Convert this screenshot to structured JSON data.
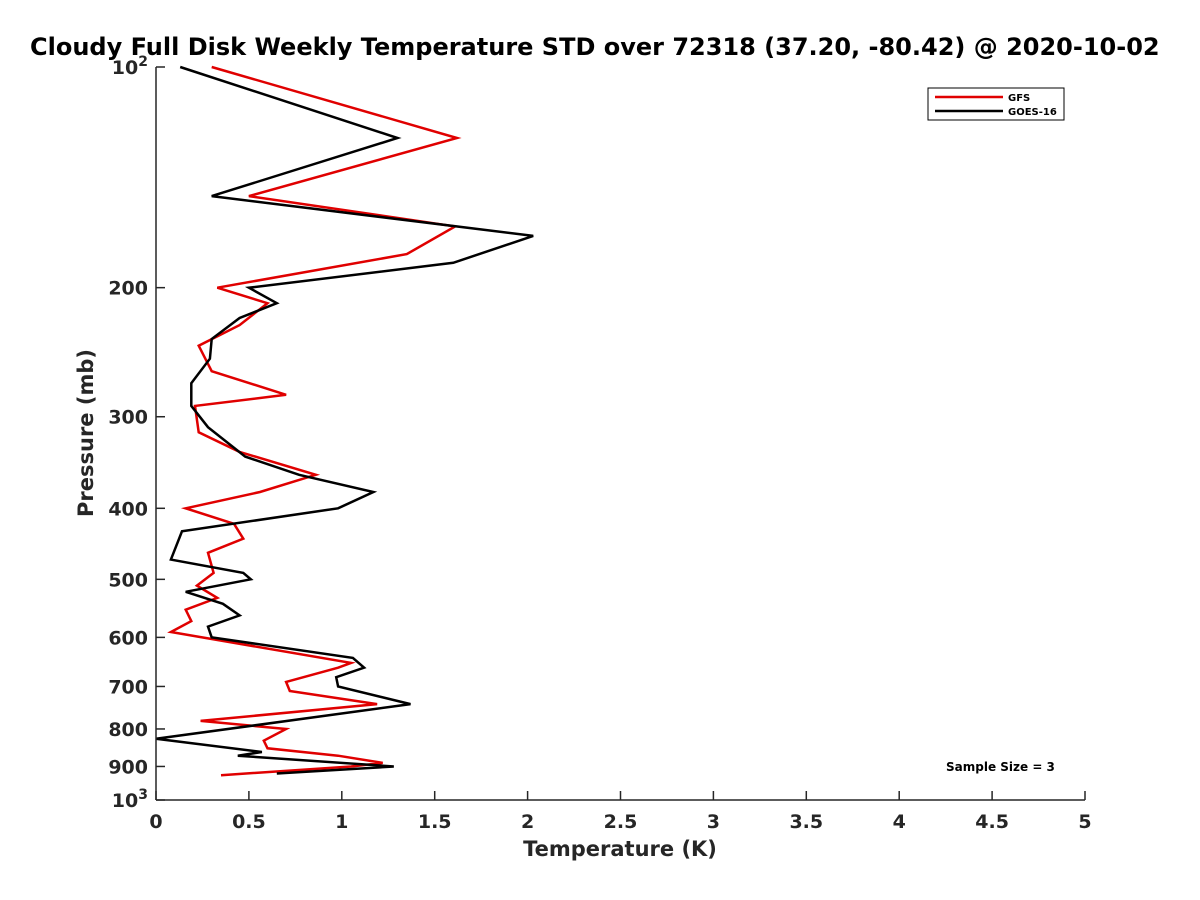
{
  "chart_data": {
    "type": "line",
    "title": "Cloudy Full Disk Weekly Temperature STD over 72318 (37.20, -80.42) @ 2020-10-02",
    "xlabel": "Temperature (K)",
    "ylabel": "Pressure (mb)",
    "xlim": [
      0,
      5
    ],
    "ylim": [
      100,
      1000
    ],
    "yscale": "log",
    "y_reversed": true,
    "x_ticks": [
      0,
      0.5,
      1,
      1.5,
      2,
      2.5,
      3,
      3.5,
      4,
      4.5,
      5
    ],
    "x_tick_labels": [
      "0",
      "0.5",
      "1",
      "1.5",
      "2",
      "2.5",
      "3",
      "3.5",
      "4",
      "4.5",
      "5"
    ],
    "y_ticks": [
      100,
      200,
      300,
      400,
      500,
      600,
      700,
      800,
      900,
      1000
    ],
    "y_tick_labels": [
      {
        "base": "10",
        "exp": "2"
      },
      {
        "base": "200",
        "exp": ""
      },
      {
        "base": "300",
        "exp": ""
      },
      {
        "base": "400",
        "exp": ""
      },
      {
        "base": "500",
        "exp": ""
      },
      {
        "base": "600",
        "exp": ""
      },
      {
        "base": "700",
        "exp": ""
      },
      {
        "base": "800",
        "exp": ""
      },
      {
        "base": "900",
        "exp": ""
      },
      {
        "base": "10",
        "exp": "3"
      }
    ],
    "legend_position": "top-right",
    "annotation": "Sample Size = 3",
    "series": [
      {
        "name": "GFS",
        "color": "#e00000",
        "points": [
          [
            0.3,
            100
          ],
          [
            1.62,
            125
          ],
          [
            0.5,
            150
          ],
          [
            1.61,
            165
          ],
          [
            1.35,
            180
          ],
          [
            0.33,
            200
          ],
          [
            0.6,
            210
          ],
          [
            0.45,
            225
          ],
          [
            0.23,
            240
          ],
          [
            0.3,
            260
          ],
          [
            0.7,
            280
          ],
          [
            0.21,
            290
          ],
          [
            0.23,
            315
          ],
          [
            0.45,
            335
          ],
          [
            0.86,
            360
          ],
          [
            0.56,
            380
          ],
          [
            0.16,
            400
          ],
          [
            0.42,
            420
          ],
          [
            0.47,
            440
          ],
          [
            0.28,
            460
          ],
          [
            0.31,
            490
          ],
          [
            0.22,
            510
          ],
          [
            0.33,
            530
          ],
          [
            0.16,
            550
          ],
          [
            0.19,
            570
          ],
          [
            0.08,
            590
          ],
          [
            1.05,
            650
          ],
          [
            0.98,
            660
          ],
          [
            0.7,
            690
          ],
          [
            0.72,
            710
          ],
          [
            1.19,
            740
          ],
          [
            0.24,
            780
          ],
          [
            0.7,
            800
          ],
          [
            0.58,
            830
          ],
          [
            0.6,
            850
          ],
          [
            0.98,
            870
          ],
          [
            1.22,
            890
          ],
          [
            1.05,
            900
          ],
          [
            0.35,
            925
          ]
        ]
      },
      {
        "name": "GOES-16",
        "color": "#000000",
        "points": [
          [
            0.13,
            100
          ],
          [
            1.3,
            125
          ],
          [
            0.3,
            150
          ],
          [
            2.03,
            170
          ],
          [
            1.6,
            185
          ],
          [
            0.5,
            200
          ],
          [
            0.65,
            210
          ],
          [
            0.45,
            220
          ],
          [
            0.3,
            235
          ],
          [
            0.29,
            250
          ],
          [
            0.19,
            270
          ],
          [
            0.19,
            290
          ],
          [
            0.28,
            310
          ],
          [
            0.48,
            340
          ],
          [
            0.77,
            360
          ],
          [
            1.17,
            380
          ],
          [
            0.98,
            400
          ],
          [
            0.14,
            430
          ],
          [
            0.08,
            470
          ],
          [
            0.47,
            490
          ],
          [
            0.51,
            500
          ],
          [
            0.16,
            520
          ],
          [
            0.36,
            540
          ],
          [
            0.45,
            560
          ],
          [
            0.28,
            580
          ],
          [
            0.3,
            600
          ],
          [
            1.06,
            640
          ],
          [
            1.12,
            660
          ],
          [
            0.97,
            680
          ],
          [
            0.98,
            700
          ],
          [
            1.37,
            740
          ],
          [
            0.0,
            825
          ],
          [
            0.57,
            860
          ],
          [
            0.44,
            870
          ],
          [
            1.28,
            900
          ],
          [
            0.65,
            920
          ]
        ]
      }
    ]
  }
}
